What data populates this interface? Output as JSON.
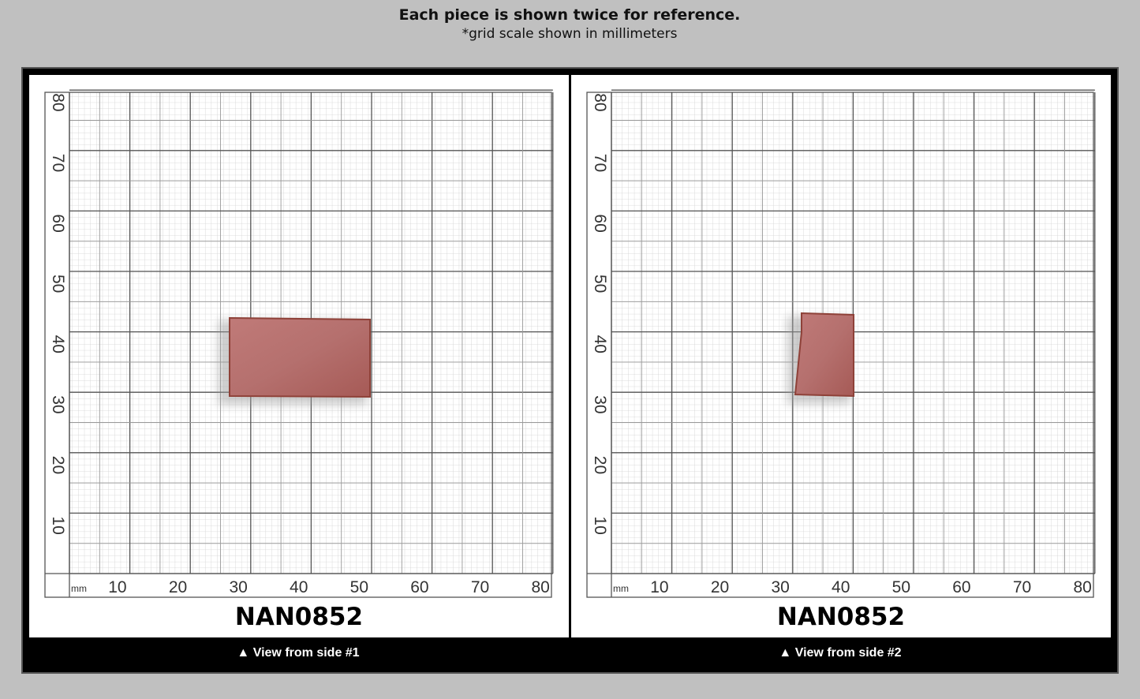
{
  "header": {
    "title": "Each piece is shown twice for reference.",
    "subtitle": "*grid scale shown in millimeters"
  },
  "scale": {
    "unit": "mm",
    "x_labels": [
      10,
      20,
      30,
      40,
      50,
      60,
      70,
      80
    ],
    "y_labels": [
      10,
      20,
      30,
      40,
      50,
      60,
      70,
      80
    ]
  },
  "panels": [
    {
      "label": "NAN0852",
      "caption": "▲ View from side #1"
    },
    {
      "label": "NAN0852",
      "caption": "▲ View from side #2"
    }
  ]
}
